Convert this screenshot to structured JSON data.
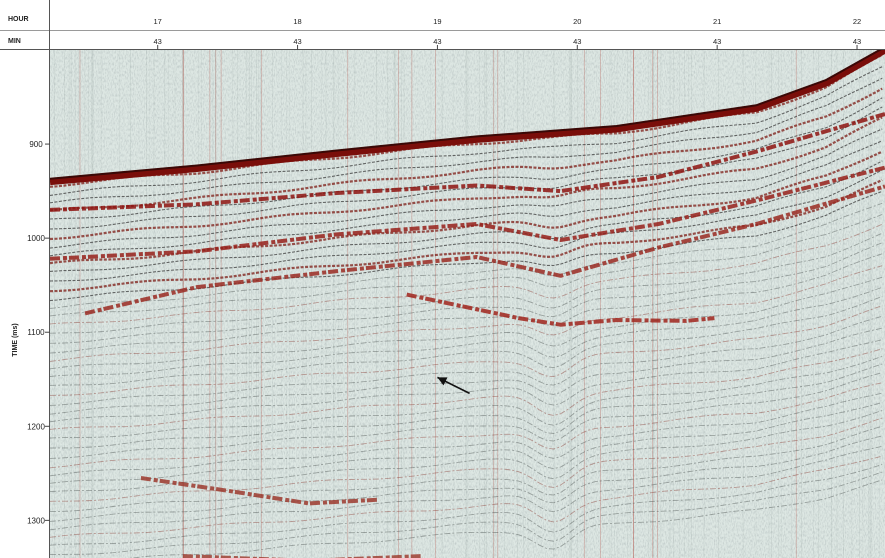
{
  "chart_data": {
    "type": "seismic_profile",
    "header_rows": [
      {
        "key": "hour",
        "label": "HOUR"
      },
      {
        "key": "min",
        "label": "MIN"
      }
    ],
    "x_ticks": [
      {
        "hour": "17",
        "min": "43"
      },
      {
        "hour": "18",
        "min": "43"
      },
      {
        "hour": "19",
        "min": "43"
      },
      {
        "hour": "20",
        "min": "43"
      },
      {
        "hour": "21",
        "min": "43"
      },
      {
        "hour": "22",
        "min": "43"
      }
    ],
    "ylabel": "TIME (ms)",
    "y_ticks": [
      "900",
      "1000",
      "1100",
      "1200",
      "1300"
    ],
    "y_tick_values": [
      900,
      1000,
      1100,
      1200,
      1300
    ],
    "ylim": [
      800,
      1340
    ],
    "x_tick_values": [
      17.72,
      18.72,
      19.72,
      20.72,
      21.72,
      22.72
    ],
    "xlim": [
      16.95,
      22.92
    ],
    "seafloor": [
      [
        16.95,
        940
      ],
      [
        18.0,
        926
      ],
      [
        19.0,
        910
      ],
      [
        20.0,
        895
      ],
      [
        21.0,
        884
      ],
      [
        22.0,
        862
      ],
      [
        22.5,
        835
      ],
      [
        22.92,
        800
      ]
    ],
    "strong_reflectors": [
      {
        "points": [
          [
            16.95,
            970
          ],
          [
            18.0,
            964
          ],
          [
            19.0,
            952
          ],
          [
            20.0,
            944
          ],
          [
            20.6,
            950
          ],
          [
            21.3,
            935
          ],
          [
            22.0,
            908
          ],
          [
            22.92,
            868
          ]
        ],
        "color": "#8e1410"
      },
      {
        "points": [
          [
            16.95,
            1022
          ],
          [
            18.0,
            1014
          ],
          [
            19.0,
            996
          ],
          [
            20.0,
            985
          ],
          [
            20.6,
            1002
          ],
          [
            21.3,
            985
          ],
          [
            22.0,
            960
          ],
          [
            22.92,
            925
          ]
        ],
        "color": "#96201a"
      },
      {
        "points": [
          [
            17.2,
            1080
          ],
          [
            18.0,
            1052
          ],
          [
            19.0,
            1035
          ],
          [
            20.0,
            1020
          ],
          [
            20.6,
            1040
          ],
          [
            21.3,
            1010
          ],
          [
            22.0,
            985
          ],
          [
            22.92,
            945
          ]
        ],
        "color": "#9a2a22"
      },
      {
        "points": [
          [
            19.5,
            1060
          ],
          [
            20.3,
            1085
          ],
          [
            20.6,
            1092
          ],
          [
            21.0,
            1087
          ],
          [
            21.5,
            1088
          ],
          [
            21.7,
            1085
          ]
        ],
        "color": "#a0251c"
      },
      {
        "points": [
          [
            17.6,
            1255
          ],
          [
            18.2,
            1268
          ],
          [
            18.8,
            1282
          ],
          [
            19.3,
            1278
          ]
        ],
        "color": "#9c3a2e"
      },
      {
        "points": [
          [
            17.9,
            1338
          ],
          [
            18.8,
            1343
          ],
          [
            19.6,
            1338
          ]
        ],
        "color": "#a04032"
      }
    ],
    "annotation_arrow": {
      "from": [
        19.95,
        1165
      ],
      "to": [
        19.72,
        1148
      ]
    }
  }
}
